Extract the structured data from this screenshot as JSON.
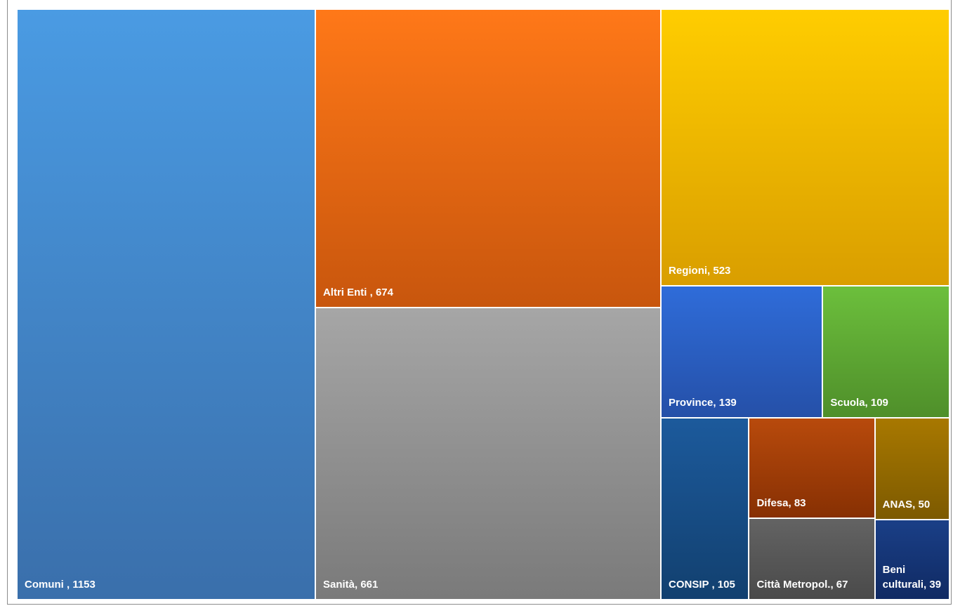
{
  "chart_data": {
    "type": "treemap",
    "items": [
      {
        "name": "Comuni ",
        "value": 1153,
        "label": "Comuni , 1153",
        "color_top": "#4a9be3",
        "color_bottom": "#3a6fab"
      },
      {
        "name": "Altri Enti ",
        "value": 674,
        "label": "Altri Enti , 674",
        "color_top": "#ff7818",
        "color_bottom": "#c8560d"
      },
      {
        "name": "Sanità",
        "value": 661,
        "label": "Sanità, 661",
        "color_top": "#a6a6a6",
        "color_bottom": "#7a7a7a"
      },
      {
        "name": "Regioni",
        "value": 523,
        "label": "Regioni, 523",
        "color_top": "#ffcd00",
        "color_bottom": "#d99e00"
      },
      {
        "name": "Province",
        "value": 139,
        "label": "Province, 139",
        "color_top": "#2f6cd9",
        "color_bottom": "#2550a8"
      },
      {
        "name": "Scuola",
        "value": 109,
        "label": "Scuola, 109",
        "color_top": "#6cbf3c",
        "color_bottom": "#4f8f2a"
      },
      {
        "name": "CONSIP ",
        "value": 105,
        "label": "CONSIP , 105",
        "color_top": "#1c5a9c",
        "color_bottom": "#12406f"
      },
      {
        "name": "Difesa",
        "value": 83,
        "label": "Difesa, 83",
        "color_top": "#b84a0c",
        "color_bottom": "#873003"
      },
      {
        "name": "ANAS",
        "value": 50,
        "label": "ANAS, 50",
        "color_top": "#a87800",
        "color_bottom": "#7d5a00"
      },
      {
        "name": "Città Metropol.",
        "value": 67,
        "label": "Città Metropol., 67",
        "color_top": "#636363",
        "color_bottom": "#4a4a4a"
      },
      {
        "name": "Beni culturali",
        "value": 39,
        "label": "Beni culturali, 39",
        "color_top": "#1a3f87",
        "color_bottom": "#102a63"
      }
    ]
  }
}
